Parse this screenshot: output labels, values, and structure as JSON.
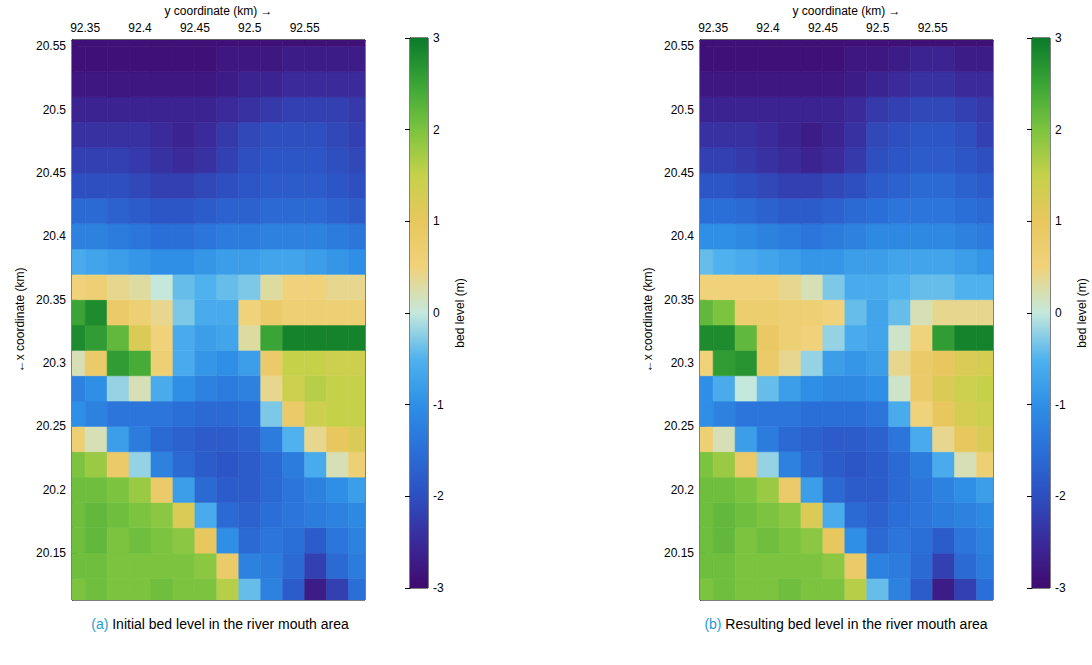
{
  "chart_data": [
    {
      "type": "heatmap",
      "caption": "(a) Initial bed level in the river mouth area",
      "x_label": "y coordinate (km) →",
      "y_label": "←x coordinate (km)",
      "xlim": [
        92.338,
        92.605
      ],
      "xticks": [
        92.35,
        92.4,
        92.45,
        92.5,
        92.55
      ],
      "ylim": [
        20.113,
        20.555
      ],
      "yticks": [
        20.15,
        20.2,
        20.25,
        20.3,
        20.35,
        20.4,
        20.45,
        20.5,
        20.55
      ],
      "x_edges": [
        92.33,
        92.35,
        92.37,
        92.39,
        92.41,
        92.43,
        92.45,
        92.47,
        92.49,
        92.51,
        92.53,
        92.55,
        92.57,
        92.59,
        92.61
      ],
      "y_edges": [
        20.11,
        20.13,
        20.15,
        20.17,
        20.19,
        20.21,
        20.23,
        20.25,
        20.27,
        20.29,
        20.31,
        20.33,
        20.35,
        20.37,
        20.39,
        20.41,
        20.43,
        20.45,
        20.47,
        20.49,
        20.51,
        20.53,
        20.55,
        20.57
      ],
      "cells": [
        [
          2.0,
          2.1,
          2.0,
          2.0,
          2.1,
          2.0,
          2.0,
          1.6,
          -0.4,
          -1.2,
          -1.8,
          -2.7,
          -2.2,
          -1.5
        ],
        [
          2.1,
          2.1,
          2.0,
          2.0,
          2.0,
          2.0,
          1.9,
          0.8,
          -1.2,
          -1.3,
          -1.6,
          -2.2,
          -1.6,
          -1.3
        ],
        [
          2.1,
          2.2,
          2.0,
          2.1,
          2.0,
          1.9,
          1.0,
          -1.0,
          -1.6,
          -1.4,
          -1.5,
          -1.8,
          -1.4,
          -1.2
        ],
        [
          2.1,
          2.2,
          2.1,
          2.0,
          1.9,
          1.2,
          -0.6,
          -1.6,
          -1.7,
          -1.5,
          -1.4,
          -1.3,
          -1.2,
          -1.1
        ],
        [
          2.1,
          2.1,
          2.0,
          1.8,
          0.8,
          -0.8,
          -1.6,
          -1.8,
          -1.8,
          -1.6,
          -1.4,
          -1.2,
          -1.0,
          -0.8
        ],
        [
          2.0,
          1.8,
          0.8,
          -0.2,
          -1.2,
          -1.6,
          -1.8,
          -1.9,
          -1.8,
          -1.6,
          -1.3,
          -0.6,
          0.2,
          0.6
        ],
        [
          0.6,
          0.2,
          -0.8,
          -1.3,
          -1.6,
          -1.7,
          -1.8,
          -1.8,
          -1.7,
          -1.3,
          -0.5,
          0.4,
          1.0,
          1.2
        ],
        [
          -1.0,
          -1.2,
          -1.4,
          -1.4,
          -1.4,
          -1.5,
          -1.6,
          -1.6,
          -1.5,
          -0.3,
          0.8,
          1.4,
          1.5,
          1.5
        ],
        [
          -1.2,
          -1.0,
          -0.2,
          0.2,
          -0.6,
          -1.0,
          -1.2,
          -1.3,
          -1.2,
          0.4,
          1.4,
          1.6,
          1.5,
          1.5
        ],
        [
          0.2,
          0.8,
          2.6,
          2.4,
          0.6,
          -0.6,
          -0.9,
          -1.0,
          -0.8,
          0.8,
          1.5,
          1.5,
          1.4,
          1.4
        ],
        [
          2.8,
          2.6,
          2.2,
          1.2,
          0.5,
          -0.6,
          -0.8,
          -0.7,
          0.3,
          2.5,
          2.9,
          2.9,
          2.9,
          2.9
        ],
        [
          2.5,
          2.8,
          0.8,
          0.6,
          0.4,
          -0.3,
          -0.6,
          -0.6,
          0.5,
          0.8,
          0.6,
          0.6,
          0.6,
          0.6
        ],
        [
          0.5,
          0.6,
          0.4,
          0.3,
          0.0,
          -0.4,
          -0.5,
          -0.4,
          -0.3,
          0.3,
          0.5,
          0.5,
          0.4,
          0.4
        ],
        [
          -0.6,
          -0.7,
          -0.8,
          -0.9,
          -1.0,
          -1.0,
          -0.9,
          -0.8,
          -0.8,
          -0.7,
          -0.7,
          -0.8,
          -0.9,
          -1.0
        ],
        [
          -1.2,
          -1.2,
          -1.3,
          -1.4,
          -1.5,
          -1.5,
          -1.4,
          -1.3,
          -1.3,
          -1.2,
          -1.2,
          -1.2,
          -1.3,
          -1.4
        ],
        [
          -1.6,
          -1.6,
          -1.7,
          -1.8,
          -1.9,
          -1.9,
          -1.8,
          -1.7,
          -1.7,
          -1.6,
          -1.6,
          -1.6,
          -1.7,
          -1.8
        ],
        [
          -2.0,
          -2.0,
          -2.0,
          -2.1,
          -2.2,
          -2.2,
          -2.1,
          -2.0,
          -1.9,
          -1.8,
          -1.8,
          -1.8,
          -1.9,
          -2.0
        ],
        [
          -2.2,
          -2.2,
          -2.2,
          -2.3,
          -2.4,
          -2.5,
          -2.4,
          -2.2,
          -2.0,
          -1.9,
          -1.9,
          -1.9,
          -2.0,
          -2.1
        ],
        [
          -2.4,
          -2.4,
          -2.4,
          -2.4,
          -2.5,
          -2.6,
          -2.5,
          -2.3,
          -2.1,
          -2.0,
          -2.0,
          -2.0,
          -2.1,
          -2.2
        ],
        [
          -2.6,
          -2.6,
          -2.6,
          -2.6,
          -2.6,
          -2.6,
          -2.6,
          -2.5,
          -2.4,
          -2.3,
          -2.2,
          -2.2,
          -2.2,
          -2.3
        ],
        [
          -2.8,
          -2.8,
          -2.8,
          -2.8,
          -2.8,
          -2.8,
          -2.8,
          -2.7,
          -2.6,
          -2.6,
          -2.5,
          -2.5,
          -2.5,
          -2.5
        ],
        [
          -2.9,
          -2.9,
          -2.9,
          -2.9,
          -2.9,
          -2.9,
          -2.9,
          -2.8,
          -2.8,
          -2.8,
          -2.7,
          -2.7,
          -2.7,
          -2.7
        ],
        [
          -2.9,
          -2.9,
          -2.9,
          -2.9,
          -2.9,
          -2.9,
          -2.9,
          -2.9,
          -2.9,
          -2.9,
          -2.9,
          -2.9,
          -2.9,
          -2.9
        ]
      ],
      "colorbar": {
        "label": "bed level (m)",
        "range": [
          -3,
          3
        ],
        "ticks": [
          -3,
          -2,
          -1,
          0,
          1,
          2,
          3
        ]
      }
    },
    {
      "type": "heatmap",
      "caption": "(b) Resulting bed level in the river mouth area",
      "x_label": "y coordinate (km) →",
      "y_label": "←x coordinate (km)",
      "xlim": [
        92.338,
        92.605
      ],
      "xticks": [
        92.35,
        92.4,
        92.45,
        92.5,
        92.55
      ],
      "ylim": [
        20.113,
        20.555
      ],
      "yticks": [
        20.15,
        20.2,
        20.25,
        20.3,
        20.35,
        20.4,
        20.45,
        20.5,
        20.55
      ],
      "x_edges": [
        92.33,
        92.35,
        92.37,
        92.39,
        92.41,
        92.43,
        92.45,
        92.47,
        92.49,
        92.51,
        92.53,
        92.55,
        92.57,
        92.59,
        92.61
      ],
      "y_edges": [
        20.11,
        20.13,
        20.15,
        20.17,
        20.19,
        20.21,
        20.23,
        20.25,
        20.27,
        20.29,
        20.31,
        20.33,
        20.35,
        20.37,
        20.39,
        20.41,
        20.43,
        20.45,
        20.47,
        20.49,
        20.51,
        20.53,
        20.55,
        20.57
      ],
      "cells": [
        [
          2.0,
          2.1,
          2.0,
          2.0,
          2.1,
          2.0,
          2.0,
          1.6,
          -0.4,
          -1.2,
          -1.8,
          -2.7,
          -2.2,
          -1.5
        ],
        [
          2.1,
          2.1,
          2.0,
          2.0,
          2.0,
          2.0,
          1.9,
          0.8,
          -1.2,
          -1.3,
          -1.6,
          -2.2,
          -1.6,
          -1.3
        ],
        [
          2.1,
          2.2,
          2.0,
          2.1,
          2.0,
          1.9,
          1.0,
          -1.0,
          -1.6,
          -1.4,
          -1.5,
          -1.8,
          -1.4,
          -1.2
        ],
        [
          2.1,
          2.2,
          2.1,
          2.0,
          1.9,
          1.2,
          -0.6,
          -1.6,
          -1.7,
          -1.5,
          -1.4,
          -1.3,
          -1.2,
          -1.1
        ],
        [
          2.1,
          2.1,
          2.0,
          1.8,
          0.8,
          -0.8,
          -1.6,
          -1.8,
          -1.8,
          -1.6,
          -1.4,
          -1.2,
          -1.0,
          -0.8
        ],
        [
          2.0,
          1.8,
          0.8,
          -0.2,
          -1.2,
          -1.6,
          -1.8,
          -1.9,
          -1.8,
          -1.6,
          -1.3,
          -0.6,
          0.2,
          0.6
        ],
        [
          0.6,
          0.2,
          -0.8,
          -1.3,
          -1.6,
          -1.7,
          -1.8,
          -1.8,
          -1.7,
          -1.4,
          -0.6,
          0.4,
          1.0,
          1.2
        ],
        [
          -1.0,
          -1.2,
          -1.4,
          -1.4,
          -1.4,
          -1.5,
          -1.5,
          -1.5,
          -1.4,
          -0.6,
          0.5,
          1.0,
          1.3,
          1.4
        ],
        [
          -1.0,
          -0.6,
          0.0,
          -0.4,
          -0.8,
          -1.0,
          -1.1,
          -1.1,
          -1.0,
          0.1,
          0.8,
          1.2,
          1.4,
          1.5
        ],
        [
          0.5,
          2.6,
          2.7,
          0.8,
          0.4,
          -0.2,
          -0.8,
          -0.9,
          -0.8,
          0.4,
          0.8,
          1.0,
          1.2,
          1.3
        ],
        [
          2.8,
          2.8,
          2.2,
          0.9,
          0.6,
          0.5,
          -0.2,
          -0.6,
          -0.7,
          0.1,
          0.5,
          2.6,
          2.9,
          2.9
        ],
        [
          2.2,
          2.0,
          0.7,
          0.7,
          0.6,
          0.6,
          0.5,
          -0.4,
          -0.7,
          -0.4,
          0.2,
          0.4,
          0.4,
          0.4
        ],
        [
          0.5,
          0.5,
          0.5,
          0.5,
          0.4,
          0.2,
          -0.3,
          -0.6,
          -0.6,
          -0.5,
          -0.4,
          -0.4,
          -0.5,
          -0.5
        ],
        [
          -0.4,
          -0.5,
          -0.6,
          -0.7,
          -0.8,
          -0.9,
          -0.9,
          -0.8,
          -0.8,
          -0.7,
          -0.7,
          -0.7,
          -0.8,
          -0.9
        ],
        [
          -1.0,
          -1.0,
          -1.1,
          -1.2,
          -1.3,
          -1.4,
          -1.3,
          -1.2,
          -1.1,
          -1.1,
          -1.1,
          -1.1,
          -1.2,
          -1.3
        ],
        [
          -1.5,
          -1.5,
          -1.6,
          -1.7,
          -1.8,
          -1.8,
          -1.7,
          -1.6,
          -1.5,
          -1.4,
          -1.4,
          -1.4,
          -1.5,
          -1.6
        ],
        [
          -1.9,
          -1.9,
          -2.0,
          -2.1,
          -2.2,
          -2.2,
          -2.1,
          -2.0,
          -1.8,
          -1.7,
          -1.6,
          -1.6,
          -1.7,
          -1.8
        ],
        [
          -2.2,
          -2.2,
          -2.3,
          -2.4,
          -2.5,
          -2.6,
          -2.5,
          -2.3,
          -2.0,
          -1.9,
          -1.8,
          -1.8,
          -1.9,
          -2.0
        ],
        [
          -2.4,
          -2.4,
          -2.4,
          -2.5,
          -2.6,
          -2.7,
          -2.6,
          -2.4,
          -2.1,
          -2.0,
          -1.9,
          -1.9,
          -2.0,
          -2.2
        ],
        [
          -2.6,
          -2.6,
          -2.6,
          -2.6,
          -2.6,
          -2.6,
          -2.6,
          -2.5,
          -2.3,
          -2.2,
          -2.1,
          -2.1,
          -2.2,
          -2.3
        ],
        [
          -2.8,
          -2.8,
          -2.8,
          -2.8,
          -2.8,
          -2.8,
          -2.8,
          -2.7,
          -2.6,
          -2.5,
          -2.4,
          -2.4,
          -2.5,
          -2.5
        ],
        [
          -2.9,
          -2.9,
          -2.9,
          -2.9,
          -2.9,
          -2.9,
          -2.9,
          -2.8,
          -2.8,
          -2.7,
          -2.6,
          -2.6,
          -2.7,
          -2.7
        ],
        [
          -2.9,
          -2.9,
          -2.9,
          -2.9,
          -2.9,
          -2.9,
          -2.9,
          -2.9,
          -2.9,
          -2.9,
          -2.9,
          -2.9,
          -2.9,
          -2.9
        ]
      ],
      "colorbar": {
        "label": "bed level (m)",
        "range": [
          -3,
          3
        ],
        "ticks": [
          -3,
          -2,
          -1,
          0,
          1,
          2,
          3
        ]
      }
    }
  ]
}
